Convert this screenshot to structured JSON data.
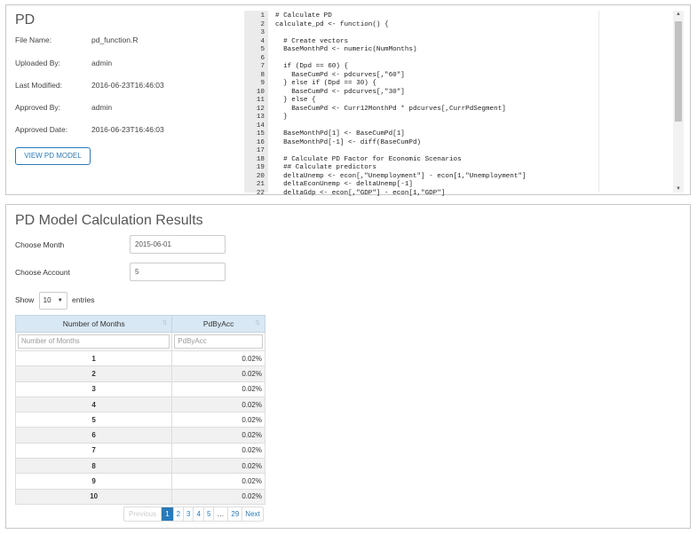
{
  "pd": {
    "title": "PD",
    "fields": [
      {
        "label": "File Name:",
        "value": "pd_function.R"
      },
      {
        "label": "Uploaded By:",
        "value": "admin"
      },
      {
        "label": "Last Modified:",
        "value": "2016-06-23T16:46:03"
      },
      {
        "label": "Approved By:",
        "value": "admin"
      },
      {
        "label": "Approved Date:",
        "value": "2016-06-23T16:46:03"
      }
    ],
    "view_button": "VIEW PD MODEL"
  },
  "code": [
    {
      "n": "1",
      "t": "# Calculate PD"
    },
    {
      "n": "2",
      "t": "calculate_pd <- function() {"
    },
    {
      "n": "3",
      "t": ""
    },
    {
      "n": "4",
      "t": "  # Create vectors"
    },
    {
      "n": "5",
      "t": "  BaseMonthPd <- numeric(NumMonths)"
    },
    {
      "n": "6",
      "t": ""
    },
    {
      "n": "7",
      "t": "  if (Dpd == 60) {"
    },
    {
      "n": "8",
      "t": "    BaseCumPd <- pdcurves[,\"60\"]"
    },
    {
      "n": "9",
      "t": "  } else if (Dpd == 30) {"
    },
    {
      "n": "10",
      "t": "    BaseCumPd <- pdcurves[,\"30\"]"
    },
    {
      "n": "11",
      "t": "  } else {"
    },
    {
      "n": "12",
      "t": "    BaseCumPd <- Curr12MonthPd * pdcurves[,CurrPdSegment]"
    },
    {
      "n": "13",
      "t": "  }"
    },
    {
      "n": "14",
      "t": ""
    },
    {
      "n": "15",
      "t": "  BaseMonthPd[1] <- BaseCumPd[1]"
    },
    {
      "n": "16",
      "t": "  BaseMonthPd[-1] <- diff(BaseCumPd)"
    },
    {
      "n": "17",
      "t": ""
    },
    {
      "n": "18",
      "t": "  # Calculate PD Factor for Economic Scenarios"
    },
    {
      "n": "19",
      "t": "  ## Calculate predictors"
    },
    {
      "n": "20",
      "t": "  deltaUnemp <- econ[,\"Unemployment\"] - econ[1,\"Unemployment\"]"
    },
    {
      "n": "21",
      "t": "  deltaEconUnemp <- deltaUnemp[-1]"
    },
    {
      "n": "22",
      "t": "  deltaGdp <- econ[,\"GDP\"] - econ[1,\"GDP\"]"
    }
  ],
  "results": {
    "title": "PD Model Calculation Results",
    "month_label": "Choose Month",
    "month_value": "2015-06-01",
    "account_label": "Choose Account",
    "account_value": "5",
    "show_label": "Show",
    "entries_value": "10",
    "entries_label": "entries",
    "columns": [
      "Number of Months",
      "PdByAcc"
    ],
    "filter_placeholders": [
      "Number of Months",
      "PdByAcc"
    ],
    "rows": [
      {
        "months": "1",
        "pd": "0.02%"
      },
      {
        "months": "2",
        "pd": "0.02%"
      },
      {
        "months": "3",
        "pd": "0.02%"
      },
      {
        "months": "4",
        "pd": "0.02%"
      },
      {
        "months": "5",
        "pd": "0.02%"
      },
      {
        "months": "6",
        "pd": "0.02%"
      },
      {
        "months": "7",
        "pd": "0.02%"
      },
      {
        "months": "8",
        "pd": "0.02%"
      },
      {
        "months": "9",
        "pd": "0.02%"
      },
      {
        "months": "10",
        "pd": "0.02%"
      }
    ],
    "pagination": {
      "previous": "Previous",
      "pages": [
        "1",
        "2",
        "3",
        "4",
        "5"
      ],
      "ellipsis": "…",
      "last": "29",
      "next": "Next"
    }
  },
  "icons": {
    "sort": "sort-both-icon",
    "caret": "caret-down-icon",
    "scroll_up": "scroll-up-icon",
    "scroll_down": "scroll-down-icon"
  },
  "colors": {
    "accent": "#2a7ab8",
    "table_header": "#d8e8f4",
    "gutter": "#ebebeb"
  }
}
